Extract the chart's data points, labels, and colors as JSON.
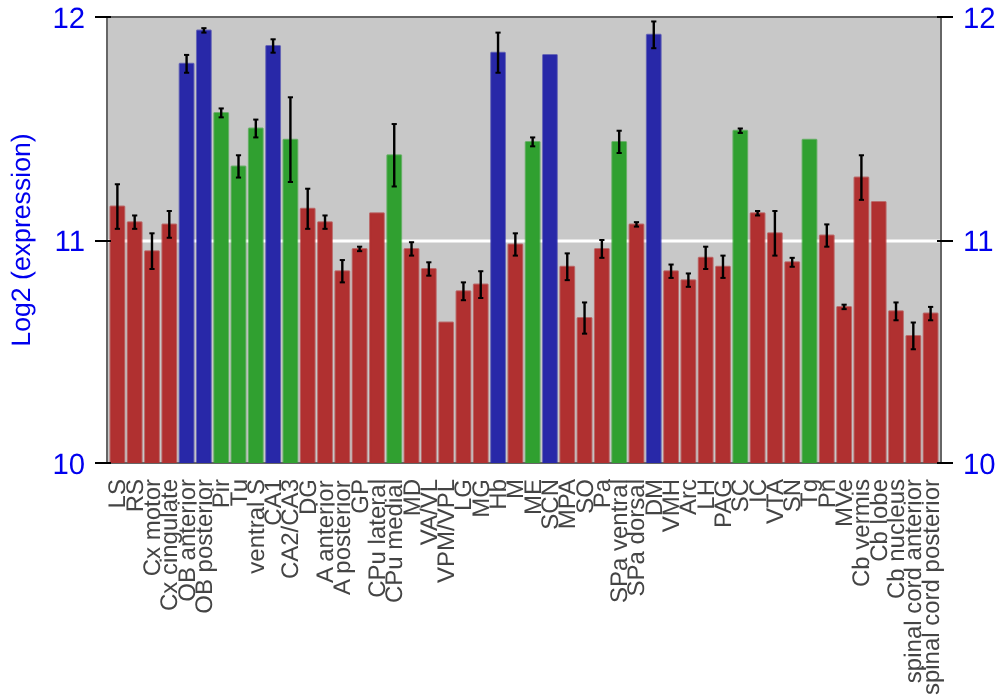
{
  "chart_data": {
    "type": "bar",
    "ylabel": "Log2 (expression)",
    "categories": [
      "LS",
      "RS",
      "Cx motor",
      "Cx cingulate",
      "OB anterior",
      "OB posterior",
      "Pir",
      "Tu",
      "ventral S",
      "CA1",
      "CA2/CA3",
      "DG",
      "A anterior",
      "A posterior",
      "GP",
      "CPu lateral",
      "CPu medial",
      "MD",
      "VA/VL",
      "VPM/VPL",
      "LG",
      "MG",
      "Hb",
      "M",
      "ME",
      "SCN",
      "MPA",
      "SO",
      "Pa",
      "SPa ventral",
      "SPa dorsal",
      "DM",
      "VMH",
      "Arc",
      "LH",
      "PAG",
      "SC",
      "IC",
      "VTA",
      "SN",
      "Tg",
      "Pn",
      "MVe",
      "Cb vermis",
      "Cb lobe",
      "Cb nucleus",
      "spinal cord anterior",
      "spinal cord posterior"
    ],
    "values": [
      11.15,
      11.08,
      10.95,
      11.07,
      11.79,
      11.94,
      11.57,
      11.33,
      11.5,
      11.87,
      11.45,
      11.14,
      11.08,
      10.86,
      10.96,
      11.12,
      11.38,
      10.96,
      10.87,
      10.63,
      10.77,
      10.8,
      11.84,
      10.98,
      11.44,
      11.83,
      10.88,
      10.65,
      10.96,
      11.44,
      11.07,
      11.92,
      10.86,
      10.82,
      10.92,
      10.88,
      11.49,
      11.12,
      11.03,
      10.9,
      11.45,
      11.02,
      10.7,
      11.28,
      11.17,
      10.68,
      10.57,
      10.67
    ],
    "errors": [
      0.1,
      0.03,
      0.08,
      0.06,
      0.04,
      0.01,
      0.02,
      0.05,
      0.04,
      0.03,
      0.19,
      0.09,
      0.03,
      0.05,
      0.01,
      null,
      0.14,
      0.03,
      0.03,
      null,
      0.04,
      0.06,
      0.09,
      0.05,
      0.02,
      null,
      0.06,
      0.07,
      0.04,
      0.05,
      0.01,
      0.06,
      0.03,
      0.03,
      0.05,
      0.05,
      0.01,
      0.01,
      0.1,
      0.02,
      null,
      0.05,
      0.01,
      0.1,
      null,
      0.04,
      0.06,
      0.03
    ],
    "colors": [
      "#b03030",
      "#b03030",
      "#b03030",
      "#b03030",
      "#2828a8",
      "#2828a8",
      "#30a030",
      "#30a030",
      "#30a030",
      "#2828a8",
      "#30a030",
      "#b03030",
      "#b03030",
      "#b03030",
      "#b03030",
      "#b03030",
      "#30a030",
      "#b03030",
      "#b03030",
      "#b03030",
      "#b03030",
      "#b03030",
      "#2828a8",
      "#b03030",
      "#30a030",
      "#2828a8",
      "#b03030",
      "#b03030",
      "#b03030",
      "#30a030",
      "#b03030",
      "#2828a8",
      "#b03030",
      "#b03030",
      "#b03030",
      "#b03030",
      "#30a030",
      "#b03030",
      "#b03030",
      "#b03030",
      "#30a030",
      "#b03030",
      "#b03030",
      "#b03030",
      "#b03030",
      "#b03030",
      "#b03030",
      "#b03030"
    ],
    "ylim": [
      10,
      12
    ],
    "yticks": [
      10,
      11,
      12
    ],
    "y2lim": [
      10,
      12
    ],
    "y2ticks": [
      10,
      11,
      12
    ],
    "grid": "y"
  }
}
